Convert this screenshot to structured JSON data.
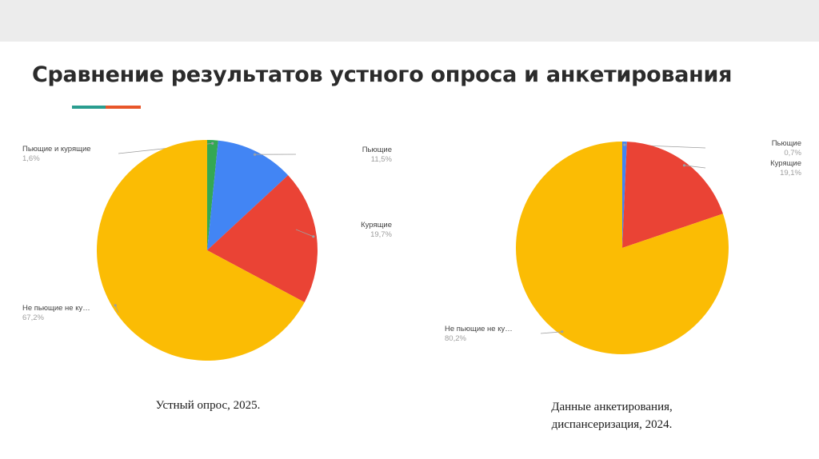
{
  "header": {
    "title": "Сравнение результатов устного опроса и анкетирования"
  },
  "colors": {
    "accent_teal": "#2a9d8f",
    "accent_orange": "#e8562a",
    "series": [
      "#fbbc04",
      "#34a853",
      "#4285f4",
      "#ea4335"
    ]
  },
  "chart_data": [
    {
      "type": "pie",
      "caption": "Устный опрос, 2025.",
      "slices": [
        {
          "label": "Пьющие и курящие",
          "value": 1.6,
          "value_label": "1,6%",
          "color": "#34a853"
        },
        {
          "label": "Пьющие",
          "value": 11.5,
          "value_label": "11,5%",
          "color": "#4285f4"
        },
        {
          "label": "Курящие",
          "value": 19.7,
          "value_label": "19,7%",
          "color": "#ea4335"
        },
        {
          "label": "Не пьющие не ку…",
          "value": 67.2,
          "value_label": "67,2%",
          "color": "#fbbc04"
        }
      ]
    },
    {
      "type": "pie",
      "caption": "Данные анкетирования, диспансеризация, 2024.",
      "slices": [
        {
          "label": "Пьющие",
          "value": 0.7,
          "value_label": "0,7%",
          "color": "#4285f4"
        },
        {
          "label": "Курящие",
          "value": 19.1,
          "value_label": "19,1%",
          "color": "#ea4335"
        },
        {
          "label": "Не пьющие не ку…",
          "value": 80.2,
          "value_label": "80,2%",
          "color": "#fbbc04"
        }
      ]
    }
  ]
}
